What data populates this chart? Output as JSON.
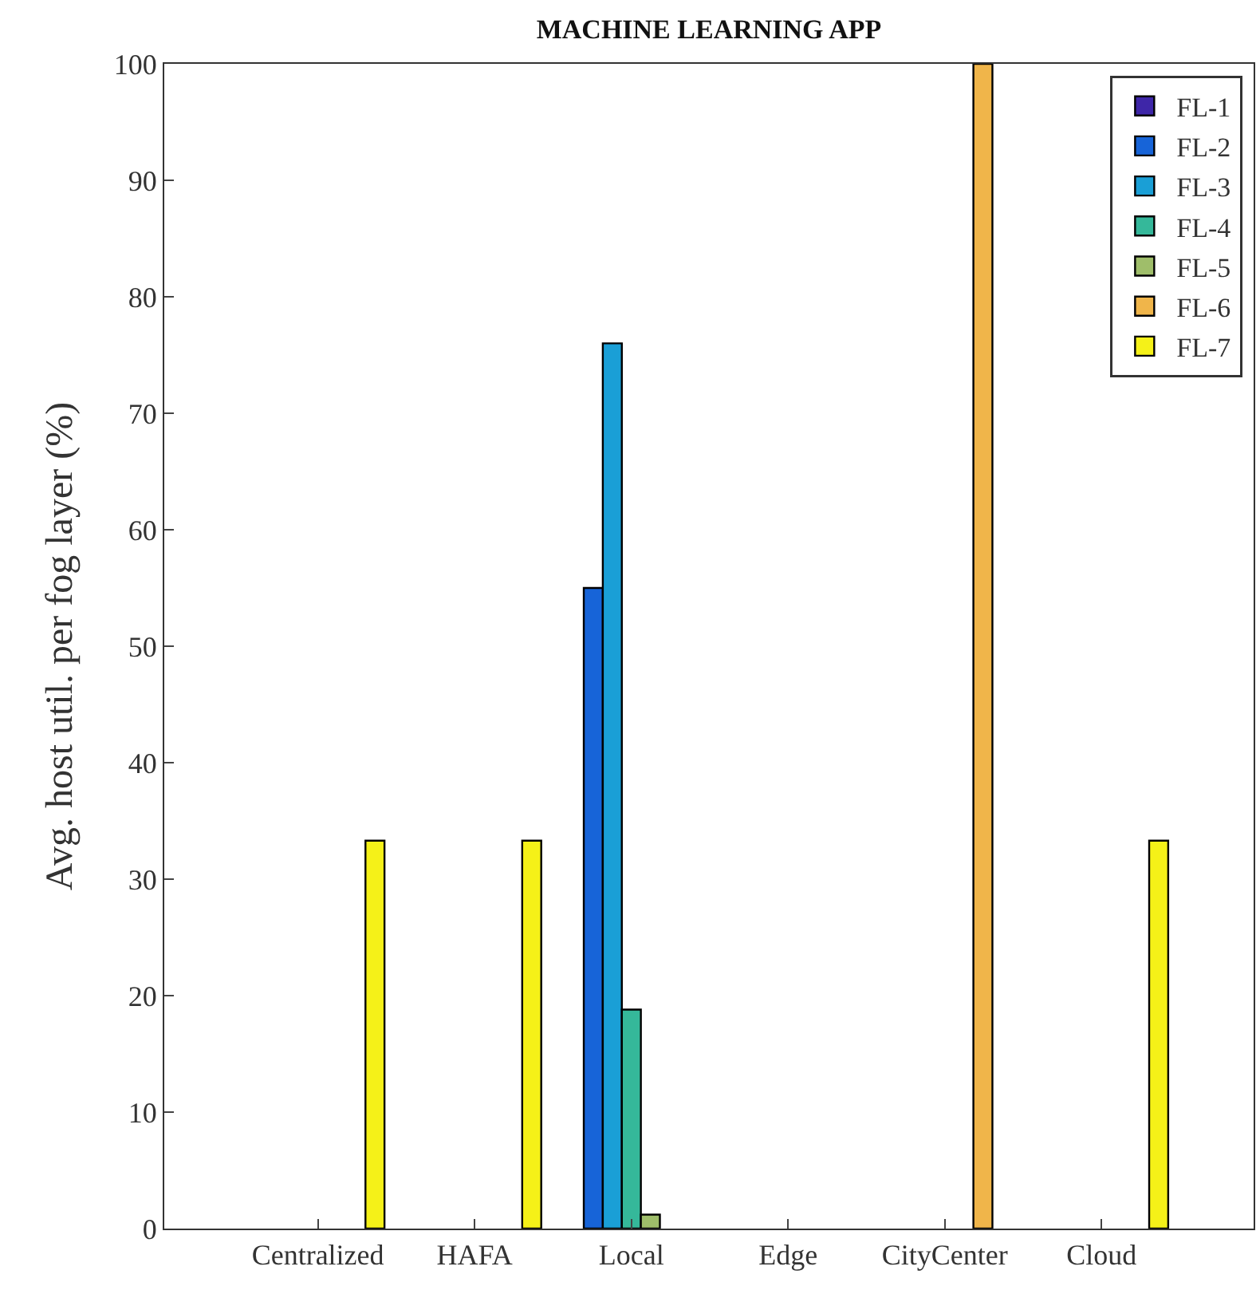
{
  "chart_data": {
    "type": "bar",
    "title": "MACHINE LEARNING APP",
    "ylabel": "Avg. host util. per fog layer (%)",
    "categories": [
      "Centralized",
      "HAFA",
      "Local",
      "Edge",
      "CityCenter",
      "Cloud"
    ],
    "series": [
      {
        "name": "FL-1",
        "color": "#3e26a8",
        "values": [
          null,
          null,
          null,
          null,
          null,
          null
        ]
      },
      {
        "name": "FL-2",
        "color": "#1764d8",
        "values": [
          null,
          null,
          55,
          null,
          null,
          null
        ]
      },
      {
        "name": "FL-3",
        "color": "#1a9fd6",
        "values": [
          null,
          null,
          76,
          null,
          null,
          null
        ]
      },
      {
        "name": "FL-4",
        "color": "#35b89a",
        "values": [
          null,
          null,
          18.8,
          null,
          null,
          null
        ]
      },
      {
        "name": "FL-5",
        "color": "#9fbe6a",
        "values": [
          null,
          null,
          1.2,
          null,
          null,
          null
        ]
      },
      {
        "name": "FL-6",
        "color": "#f0b54a",
        "values": [
          null,
          null,
          null,
          null,
          100,
          null
        ]
      },
      {
        "name": "FL-7",
        "color": "#f5f118",
        "values": [
          33.3,
          33.3,
          null,
          null,
          null,
          33.3
        ]
      }
    ],
    "ylim": [
      0,
      100
    ],
    "yticks": [
      0,
      10,
      20,
      30,
      40,
      50,
      60,
      70,
      80,
      90,
      100
    ],
    "grid": false,
    "legend": "top right"
  }
}
